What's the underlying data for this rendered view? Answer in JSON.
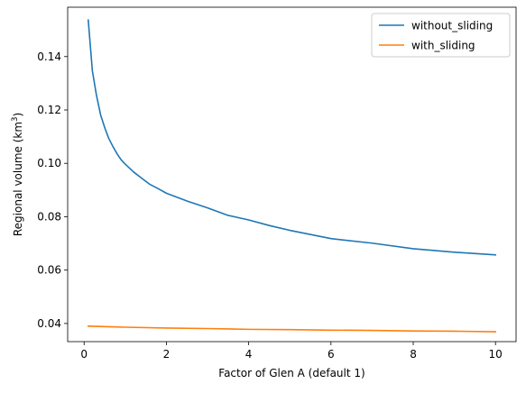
{
  "chart_data": {
    "type": "line",
    "title": "",
    "xlabel": "Factor of Glen A (default 1)",
    "ylabel_main": "Regional volume (km",
    "ylabel_sup": "3",
    "ylabel_tail": ")",
    "xlim": [
      -0.4,
      10.5
    ],
    "ylim": [
      0.0332,
      0.1585
    ],
    "xticks": [
      0,
      2,
      4,
      6,
      8,
      10
    ],
    "xtick_labels": [
      "0",
      "2",
      "4",
      "6",
      "8",
      "10"
    ],
    "yticks": [
      0.04,
      0.06,
      0.08,
      0.1,
      0.12,
      0.14
    ],
    "ytick_labels": [
      "0.04",
      "0.06",
      "0.08",
      "0.10",
      "0.12",
      "0.14"
    ],
    "grid": false,
    "legend_position": "top-right",
    "series": [
      {
        "name": "without_sliding",
        "color": "#1f77b4",
        "x": [
          0.1,
          0.2,
          0.3,
          0.4,
          0.5,
          0.6,
          0.7,
          0.8,
          0.9,
          1.0,
          1.2,
          1.4,
          1.6,
          1.8,
          2.0,
          2.5,
          3.0,
          3.5,
          4.0,
          4.5,
          5.0,
          6.0,
          7.0,
          8.0,
          9.0,
          10.0
        ],
        "y": [
          0.1537,
          0.1347,
          0.1255,
          0.1182,
          0.1134,
          0.1093,
          0.1063,
          0.1036,
          0.1013,
          0.0997,
          0.0968,
          0.0944,
          0.0921,
          0.0905,
          0.0888,
          0.0859,
          0.0833,
          0.0805,
          0.0788,
          0.0767,
          0.0749,
          0.0718,
          0.0701,
          0.068,
          0.0667,
          0.0657
        ]
      },
      {
        "name": "with_sliding",
        "color": "#ff7f0e",
        "x": [
          0.1,
          1.0,
          2.0,
          3.0,
          4.0,
          5.0,
          6.0,
          7.0,
          8.0,
          9.0,
          10.0
        ],
        "y": [
          0.039,
          0.0386,
          0.0383,
          0.0381,
          0.0378,
          0.0377,
          0.0375,
          0.0374,
          0.0372,
          0.0371,
          0.0369
        ]
      }
    ]
  }
}
